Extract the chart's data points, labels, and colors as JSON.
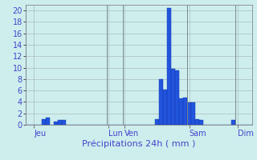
{
  "title": "",
  "xlabel": "Précipitations 24h ( mm )",
  "ylabel": "",
  "background_color": "#ceeeed",
  "bar_color": "#2255dd",
  "bar_edge_color": "#1133aa",
  "grid_color": "#aabbbb",
  "text_color": "#4444cc",
  "ylim": [
    0,
    21
  ],
  "yticks": [
    0,
    2,
    4,
    6,
    8,
    10,
    12,
    14,
    16,
    18,
    20
  ],
  "num_bars": 56,
  "bar_values": [
    0,
    0,
    0,
    0,
    1.0,
    1.2,
    0,
    0.6,
    0.8,
    0.8,
    0,
    0,
    0,
    0,
    0,
    0,
    0,
    0,
    0,
    0,
    0,
    0,
    0,
    0,
    0,
    0,
    0,
    0,
    0,
    0,
    0,
    0,
    1.0,
    8.0,
    6.2,
    20.5,
    9.8,
    9.5,
    4.6,
    4.8,
    3.9,
    3.9,
    1.0,
    0.9,
    0,
    0,
    0,
    0,
    0,
    0,
    0,
    0.9,
    0,
    0,
    0,
    0
  ],
  "day_labels": [
    "Jeu",
    "Lun",
    "Ven",
    "Sam",
    "Dim"
  ],
  "day_positions": [
    0,
    20,
    24,
    40,
    52
  ],
  "day_label_offsets": [
    2,
    20.5,
    24.5,
    40.5,
    52.5
  ]
}
